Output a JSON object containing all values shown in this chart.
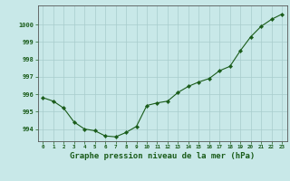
{
  "x": [
    0,
    1,
    2,
    3,
    4,
    5,
    6,
    7,
    8,
    9,
    10,
    11,
    12,
    13,
    14,
    15,
    16,
    17,
    18,
    19,
    20,
    21,
    22,
    23
  ],
  "y": [
    995.8,
    995.6,
    995.2,
    994.4,
    994.0,
    993.9,
    993.6,
    993.55,
    993.8,
    994.15,
    995.35,
    995.5,
    995.6,
    996.1,
    996.45,
    996.7,
    996.9,
    997.35,
    997.6,
    998.5,
    999.3,
    999.9,
    1000.3,
    1000.6
  ],
  "line_color": "#1a5c1a",
  "marker_color": "#1a5c1a",
  "bg_color": "#c8e8e8",
  "grid_color": "#a8cccc",
  "title": "Graphe pression niveau de la mer (hPa)",
  "title_color": "#1a5c1a",
  "title_fontsize": 6.5,
  "ylabel_ticks": [
    994,
    995,
    996,
    997,
    998,
    999,
    1000
  ],
  "ylim": [
    993.3,
    1001.1
  ],
  "xlim": [
    -0.5,
    23.5
  ],
  "tick_color": "#1a5c1a",
  "axis_color": "#555555"
}
